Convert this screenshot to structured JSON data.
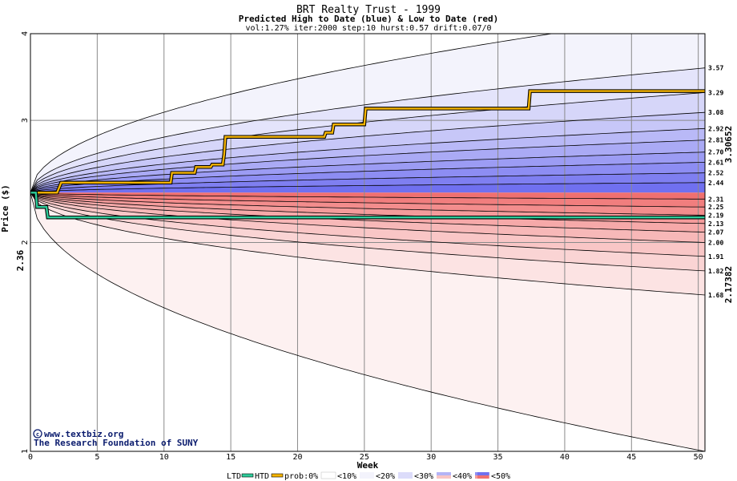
{
  "chart_data": {
    "type": "area",
    "title": "BRT Realty Trust - 1999",
    "subtitle": "Predicted High to Date (blue) &  Low to Date (red)",
    "params": "vol:1.27% iter:2000 step:10 hurst:0.57 drift:0.07/0",
    "xlabel": "Week",
    "ylabel": "Price ($)",
    "xlim": [
      0,
      50.5
    ],
    "ylim": [
      1,
      4
    ],
    "y_scale": "log",
    "grid": true,
    "x_ticks": [
      0,
      5,
      10,
      15,
      20,
      25,
      30,
      35,
      40,
      45,
      50
    ],
    "y_ticks": [
      1,
      2,
      3,
      4
    ],
    "start_price": 2.36,
    "start_label": "2.36",
    "htd_final_label": "3.30652",
    "ltd_final_label": "2.17382",
    "high_quantiles": [
      3.57,
      3.29,
      3.08,
      2.92,
      2.81,
      2.7,
      2.61,
      2.52,
      2.44
    ],
    "high_quantile_labels": [
      "3.57",
      "3.29",
      "3.08",
      "2.92",
      "2.81",
      "2.70",
      "2.61",
      "2.52",
      "2.44"
    ],
    "low_quantiles": [
      2.31,
      2.25,
      2.19,
      2.13,
      2.07,
      2.0,
      1.91,
      1.82,
      1.68
    ],
    "low_quantile_labels": [
      "2.31",
      "2.25",
      "2.19",
      "2.13",
      "2.07",
      "2.00",
      "1.91",
      "1.82",
      "1.68"
    ],
    "high_outer": 4.3,
    "low_outer": 1.0,
    "htd_path": [
      [
        0,
        2.36
      ],
      [
        2,
        2.36
      ],
      [
        2.3,
        2.44
      ],
      [
        10.5,
        2.44
      ],
      [
        10.6,
        2.52
      ],
      [
        12.3,
        2.52
      ],
      [
        12.4,
        2.57
      ],
      [
        13.5,
        2.57
      ],
      [
        13.6,
        2.59
      ],
      [
        14.4,
        2.59
      ],
      [
        14.5,
        2.68
      ],
      [
        14.6,
        2.84
      ],
      [
        22.0,
        2.84
      ],
      [
        22.1,
        2.88
      ],
      [
        22.6,
        2.88
      ],
      [
        22.7,
        2.96
      ],
      [
        25.0,
        2.96
      ],
      [
        25.1,
        3.12
      ],
      [
        37.3,
        3.12
      ],
      [
        37.4,
        3.30652
      ],
      [
        50.5,
        3.30652
      ]
    ],
    "ltd_path": [
      [
        0,
        2.36
      ],
      [
        0.4,
        2.36
      ],
      [
        0.5,
        2.25
      ],
      [
        1.2,
        2.25
      ],
      [
        1.3,
        2.17382
      ],
      [
        50.5,
        2.17382
      ]
    ],
    "credit": [
      "www.textbiz.org",
      "The Research Foundation of SUNY"
    ],
    "legend": [
      "LTD",
      "HTD",
      "prob:0%",
      "<10%",
      "<20%",
      "<30%",
      "<40%",
      "<50%"
    ],
    "colors": {
      "high_line": "#f5b400",
      "low_line": "#2ecc9a",
      "high_band_dark": "#7070f0",
      "high_band_light": "#f3f3fc",
      "low_band_dark": "#f07070",
      "low_band_light": "#fdf1f1",
      "htd_label": "#9a6a00",
      "ltd_label": "#00956a"
    }
  }
}
